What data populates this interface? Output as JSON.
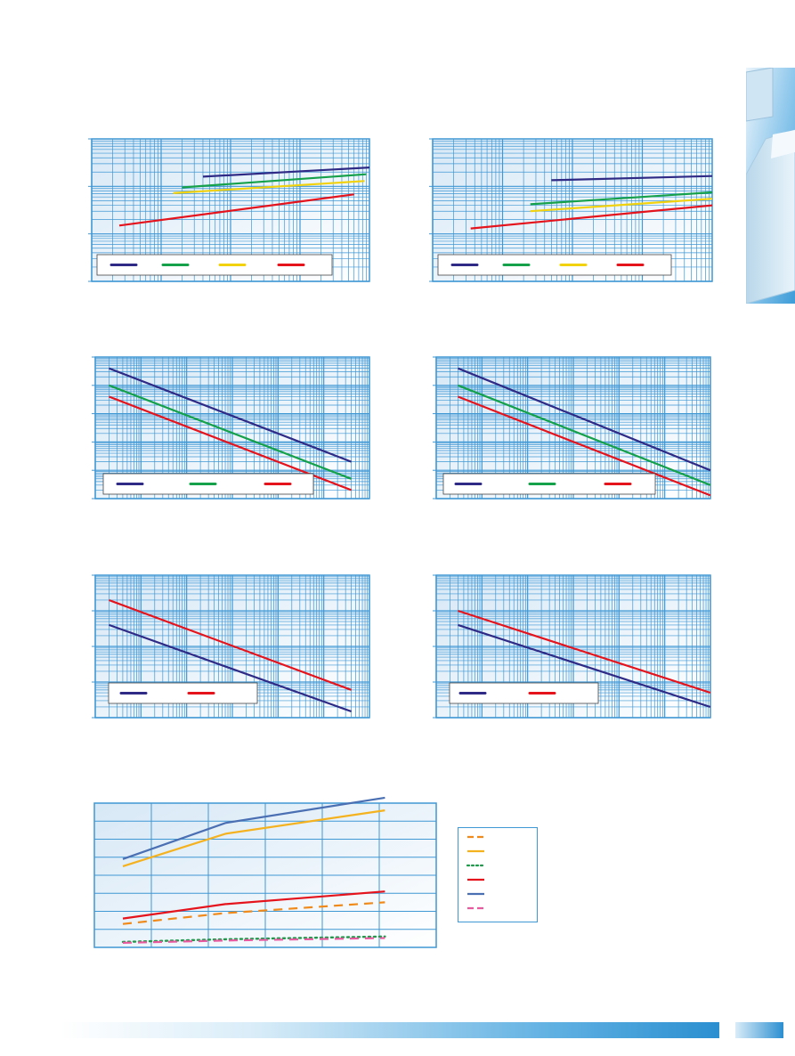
{
  "chart_data": [
    {
      "id": "top-left",
      "type": "line",
      "xscale": "log",
      "yscale": "log",
      "xlim": [
        1,
        10000
      ],
      "ylim": [
        0.01,
        10
      ],
      "grid": true,
      "legend_position": "bottom",
      "series": [
        {
          "color": "#2e2a85",
          "x": [
            40,
            10000
          ],
          "y": [
            1.6,
            2.5
          ]
        },
        {
          "color": "#15a04a",
          "x": [
            20,
            9000
          ],
          "y": [
            0.95,
            1.8
          ]
        },
        {
          "color": "#f2d20d",
          "x": [
            15,
            8500
          ],
          "y": [
            0.72,
            1.3
          ]
        },
        {
          "color": "#e5141c",
          "x": [
            2.5,
            6000
          ],
          "y": [
            0.15,
            0.68
          ]
        }
      ]
    },
    {
      "id": "top-right",
      "type": "line",
      "xscale": "log",
      "yscale": "log",
      "xlim": [
        1,
        10000
      ],
      "ylim": [
        0.01,
        10
      ],
      "grid": true,
      "legend_position": "bottom",
      "series": [
        {
          "color": "#2e2a85",
          "x": [
            50,
            10000
          ],
          "y": [
            1.35,
            1.65
          ]
        },
        {
          "color": "#15a04a",
          "x": [
            25,
            10000
          ],
          "y": [
            0.42,
            0.75
          ]
        },
        {
          "color": "#f2d20d",
          "x": [
            25,
            10000
          ],
          "y": [
            0.3,
            0.55
          ]
        },
        {
          "color": "#e5141c",
          "x": [
            3.5,
            10000
          ],
          "y": [
            0.13,
            0.4
          ]
        }
      ]
    },
    {
      "id": "middle-left",
      "type": "line",
      "xscale": "log",
      "yscale": "log",
      "xlim": [
        1,
        1000000
      ],
      "ylim": [
        1,
        100000
      ],
      "grid": true,
      "legend_position": "bottom-left",
      "series": [
        {
          "color": "#2e2a85",
          "x": [
            2,
            400000
          ],
          "y": [
            40000,
            20
          ]
        },
        {
          "color": "#15a04a",
          "x": [
            2,
            400000
          ],
          "y": [
            10000,
            5
          ]
        },
        {
          "color": "#e5141c",
          "x": [
            2,
            400000
          ],
          "y": [
            4000,
            2
          ]
        }
      ]
    },
    {
      "id": "middle-right",
      "type": "line",
      "xscale": "log",
      "yscale": "log",
      "xlim": [
        1,
        1000000
      ],
      "ylim": [
        1,
        100000
      ],
      "grid": true,
      "legend_position": "bottom-left",
      "series": [
        {
          "color": "#2e2a85",
          "x": [
            3,
            1000000
          ],
          "y": [
            40000,
            10
          ]
        },
        {
          "color": "#15a04a",
          "x": [
            3,
            1000000
          ],
          "y": [
            10000,
            3
          ]
        },
        {
          "color": "#e5141c",
          "x": [
            3,
            1000000
          ],
          "y": [
            4000,
            1.3
          ]
        }
      ]
    },
    {
      "id": "lower-left",
      "type": "line",
      "xscale": "log",
      "yscale": "log",
      "xlim": [
        1,
        1000000
      ],
      "ylim": [
        1,
        10000
      ],
      "grid": true,
      "legend_position": "bottom-left",
      "series": [
        {
          "color": "#2e2a85",
          "x": [
            2,
            400000
          ],
          "y": [
            400,
            1.5
          ]
        },
        {
          "color": "#e5141c",
          "x": [
            2,
            400000
          ],
          "y": [
            2000,
            6
          ]
        }
      ]
    },
    {
      "id": "lower-right",
      "type": "line",
      "xscale": "log",
      "yscale": "log",
      "xlim": [
        1,
        1000000
      ],
      "ylim": [
        1,
        10000
      ],
      "grid": true,
      "legend_position": "bottom-left",
      "series": [
        {
          "color": "#2e2a85",
          "x": [
            3,
            1000000
          ],
          "y": [
            400,
            2
          ]
        },
        {
          "color": "#e5141c",
          "x": [
            3,
            1000000
          ],
          "y": [
            1000,
            5
          ]
        }
      ]
    },
    {
      "id": "bottom",
      "type": "line",
      "xscale": "linear",
      "yscale": "linear",
      "xlim": [
        0,
        6
      ],
      "ylim": [
        0,
        8
      ],
      "grid": true,
      "legend_position": "right",
      "series": [
        {
          "color": "#f08a1a",
          "dash": "dash",
          "x": [
            0.5,
            2.3,
            5.1
          ],
          "y": [
            1.3,
            1.9,
            2.5
          ]
        },
        {
          "color": "#f5b21f",
          "dash": "solid",
          "x": [
            0.5,
            2.3,
            5.1
          ],
          "y": [
            4.5,
            6.3,
            7.6
          ]
        },
        {
          "color": "#1f9a4a",
          "dash": "dot",
          "x": [
            0.5,
            2.3,
            5.1
          ],
          "y": [
            0.3,
            0.45,
            0.6
          ]
        },
        {
          "color": "#e5141c",
          "dash": "solid",
          "x": [
            0.5,
            2.3,
            5.1
          ],
          "y": [
            1.6,
            2.4,
            3.1
          ]
        },
        {
          "color": "#4a6fb2",
          "dash": "solid",
          "x": [
            0.5,
            2.3,
            5.1
          ],
          "y": [
            4.9,
            6.9,
            8.3
          ]
        },
        {
          "color": "#e85aa0",
          "dash": "dash",
          "x": [
            0.5,
            2.3,
            5.1
          ],
          "y": [
            0.25,
            0.38,
            0.52
          ]
        }
      ]
    }
  ]
}
